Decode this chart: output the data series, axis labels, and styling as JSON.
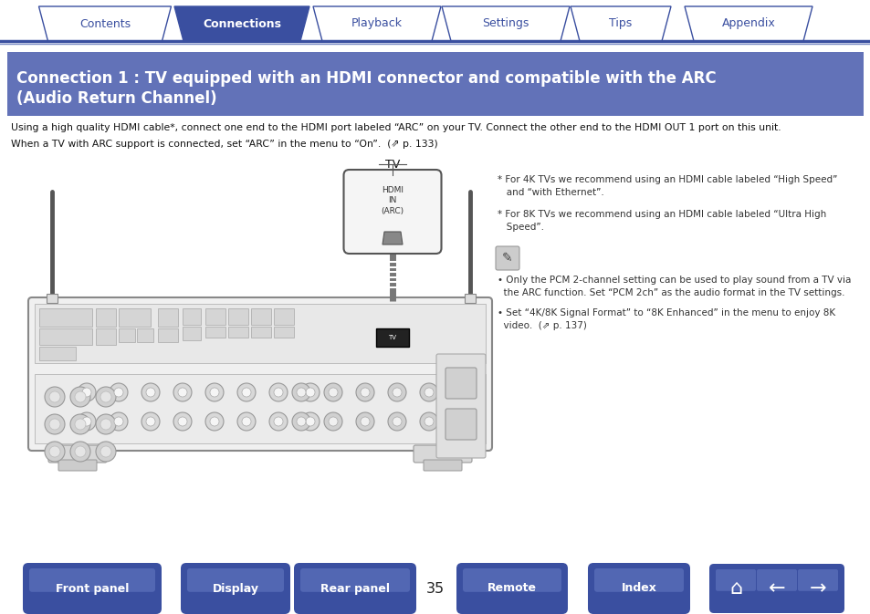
{
  "bg_color": "#ffffff",
  "tab_items": [
    "Contents",
    "Connections",
    "Playback",
    "Settings",
    "Tips",
    "Appendix"
  ],
  "tab_active": 1,
  "tab_active_color": "#3a4fa0",
  "tab_inactive_color": "#ffffff",
  "tab_border_color": "#3a4fa0",
  "tab_text_color_active": "#ffffff",
  "tab_text_color_inactive": "#3a4fa0",
  "header_bg": "#6272b8",
  "header_text_line1": "Connection 1 : TV equipped with an HDMI connector and compatible with the ARC",
  "header_text_line2": "(Audio Return Channel)",
  "header_text_color": "#ffffff",
  "body_text_line1": "Using a high quality HDMI cable*, connect one end to the HDMI port labeled “ARC” on your TV. Connect the other end to the HDMI OUT 1 port on this unit.",
  "body_text_line2": "When a TV with ARC support is connected, set “ARC” in the menu to “On”.  (⇗ p. 133)",
  "note1": "* For 4K TVs we recommend using an HDMI cable labeled “High Speed”\n   and “with Ethernet”.",
  "note2": "* For 8K TVs we recommend using an HDMI cable labeled “Ultra High\n   Speed”.",
  "bullet1": "Only the PCM 2-channel setting can be used to play sound from a TV via\n   the ARC function. Set “PCM 2ch” as the audio format in the TV settings.",
  "bullet2": "Set “4K/8K Signal Format” to “8K Enhanced” in the menu to enjoy 8K\n   video.  (⇗ p. 137)",
  "footer_buttons": [
    "Front panel",
    "Display",
    "Rear panel",
    "Remote",
    "Index"
  ],
  "footer_btn_color": "#3a4fa0",
  "footer_btn_text_color": "#ffffff",
  "page_number": "35",
  "divider_color": "#3a4fa0",
  "tv_label": "TV",
  "tv_port_label": "HDMI\nIN\n(ARC)"
}
